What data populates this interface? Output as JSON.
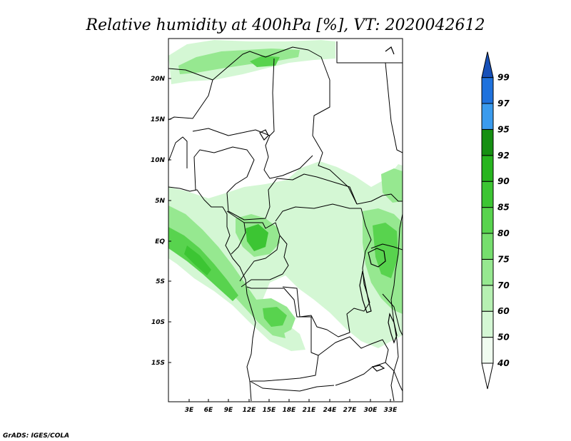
{
  "title": "Relative humidity at 400hPa [%], VT: 2020042612",
  "credit": "GrADS: IGES/COLA",
  "map": {
    "lat_labels": [
      "20N",
      "15N",
      "10N",
      "5N",
      "EQ",
      "5S",
      "10S",
      "15S"
    ],
    "lon_labels": [
      "3E",
      "6E",
      "9E",
      "12E",
      "15E",
      "18E",
      "21E",
      "24E",
      "27E",
      "30E",
      "33E"
    ]
  },
  "colorbar": {
    "levels": [
      "40",
      "50",
      "60",
      "70",
      "75",
      "80",
      "85",
      "90",
      "92",
      "95",
      "97",
      "99"
    ],
    "colors": [
      "#f0fcf0",
      "#d4f7d4",
      "#b6f0b2",
      "#96e890",
      "#76de6e",
      "#58d34e",
      "#3cc533",
      "#27b51f",
      "#158f12",
      "#3a9bee",
      "#1f72dd",
      "#1750b8"
    ]
  }
}
